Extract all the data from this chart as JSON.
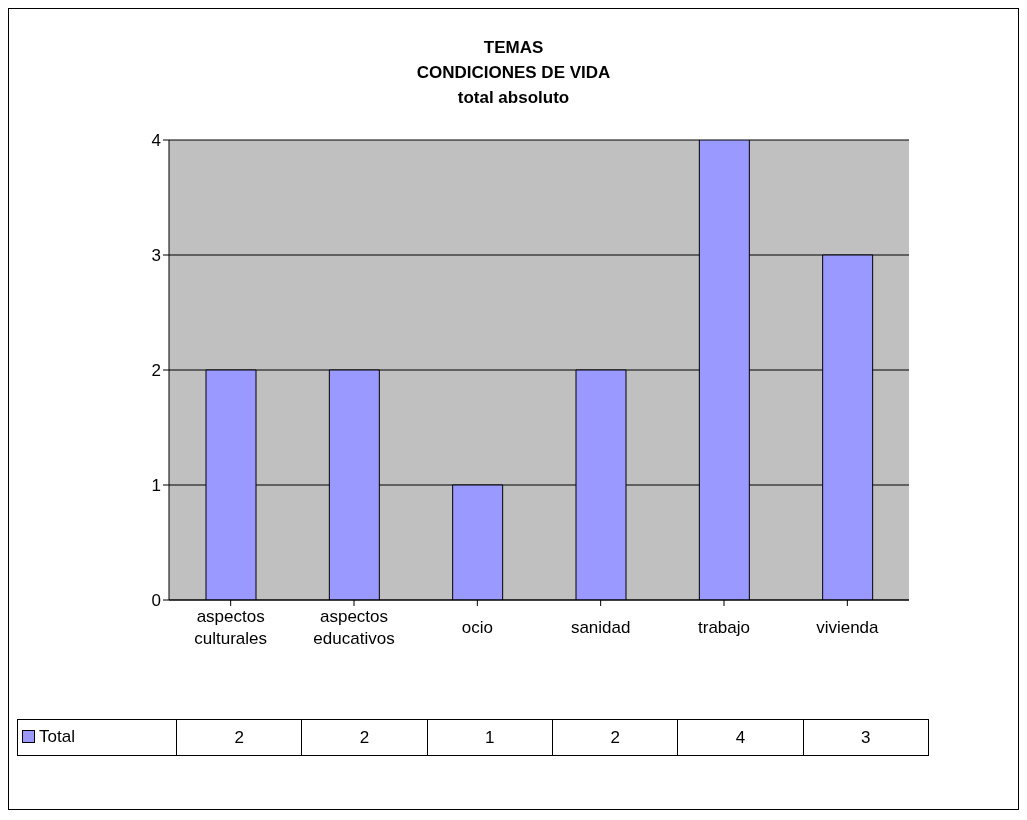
{
  "chart_data": {
    "type": "bar",
    "title": "TEMAS\nCONDICIONES DE VIDA\ntotal absoluto",
    "categories": [
      "aspectos culturales",
      "aspectos educativos",
      "ocio",
      "sanidad",
      "trabajo",
      "vivienda"
    ],
    "series": [
      {
        "name": "Total",
        "color": "#9999ff",
        "values": [
          2,
          2,
          1,
          2,
          4,
          3
        ]
      }
    ],
    "ylim": [
      0,
      4
    ],
    "yticks": [
      0,
      1,
      2,
      3,
      4
    ],
    "grid": "y",
    "legend": "bottom left",
    "data_labels": true
  }
}
